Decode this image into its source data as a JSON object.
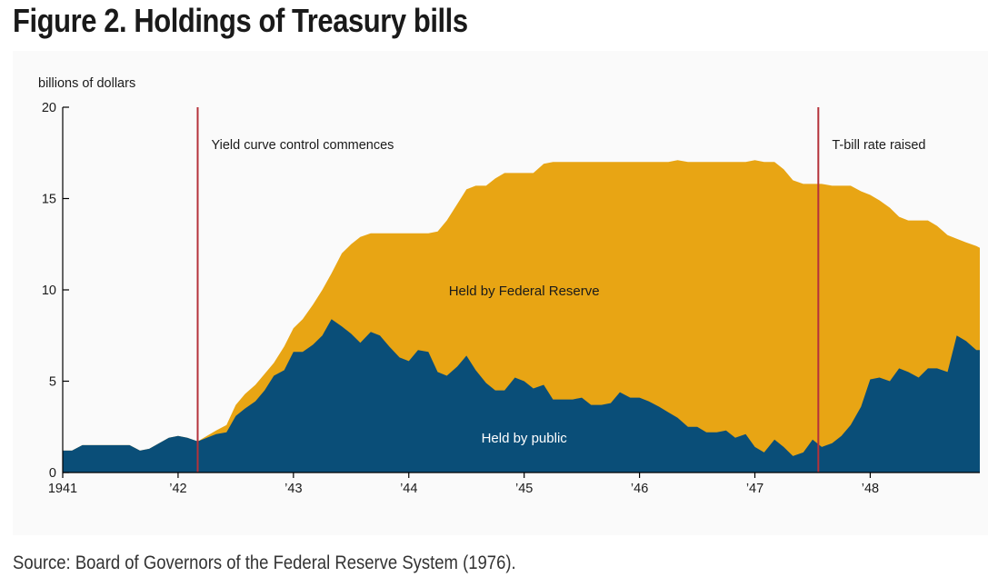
{
  "figure": {
    "title": "Figure 2. Holdings of Treasury bills",
    "source": "Source: Board of Governors of the Federal Reserve System (1976)."
  },
  "colors": {
    "public": "#0a4e78",
    "fed": "#e8a514",
    "event_line": "#b5323a",
    "axis": "#000000",
    "panel": "#fafafa"
  },
  "chart_data": {
    "type": "area",
    "stacked": true,
    "title": "Holdings of Treasury bills",
    "ylabel": "billions of dollars",
    "xlabel": "",
    "xlim": [
      1941.0,
      1948.95
    ],
    "ylim": [
      0,
      20
    ],
    "yticks": [
      0,
      5,
      10,
      15,
      20
    ],
    "xticks": [
      {
        "value": 1941.0,
        "label": "1941"
      },
      {
        "value": 1942.0,
        "label": "’42"
      },
      {
        "value": 1943.0,
        "label": "’43"
      },
      {
        "value": 1944.0,
        "label": "’44"
      },
      {
        "value": 1945.0,
        "label": "’45"
      },
      {
        "value": 1946.0,
        "label": "’46"
      },
      {
        "value": 1947.0,
        "label": "’47"
      },
      {
        "value": 1948.0,
        "label": "’48"
      }
    ],
    "series": [
      {
        "name": "Held by public",
        "points": [
          [
            1941.0,
            1.2
          ],
          [
            1941.08,
            1.2
          ],
          [
            1941.17,
            1.5
          ],
          [
            1941.5,
            1.5
          ],
          [
            1941.58,
            1.5
          ],
          [
            1941.67,
            1.2
          ],
          [
            1941.75,
            1.3
          ],
          [
            1941.92,
            1.9
          ],
          [
            1942.0,
            2.0
          ],
          [
            1942.08,
            1.9
          ],
          [
            1942.17,
            1.7
          ],
          [
            1942.25,
            1.9
          ],
          [
            1942.33,
            2.1
          ],
          [
            1942.42,
            2.2
          ],
          [
            1942.5,
            3.1
          ],
          [
            1942.58,
            3.5
          ],
          [
            1942.67,
            3.9
          ],
          [
            1942.75,
            4.5
          ],
          [
            1942.83,
            5.3
          ],
          [
            1942.92,
            5.6
          ],
          [
            1943.0,
            6.6
          ],
          [
            1943.08,
            6.6
          ],
          [
            1943.17,
            7.0
          ],
          [
            1943.25,
            7.5
          ],
          [
            1943.33,
            8.4
          ],
          [
            1943.42,
            8.0
          ],
          [
            1943.5,
            7.6
          ],
          [
            1943.58,
            7.1
          ],
          [
            1943.67,
            7.7
          ],
          [
            1943.75,
            7.5
          ],
          [
            1943.83,
            6.9
          ],
          [
            1943.92,
            6.3
          ],
          [
            1944.0,
            6.1
          ],
          [
            1944.08,
            6.7
          ],
          [
            1944.17,
            6.6
          ],
          [
            1944.25,
            5.5
          ],
          [
            1944.33,
            5.3
          ],
          [
            1944.42,
            5.8
          ],
          [
            1944.5,
            6.4
          ],
          [
            1944.58,
            5.6
          ],
          [
            1944.67,
            4.9
          ],
          [
            1944.75,
            4.5
          ],
          [
            1944.83,
            4.5
          ],
          [
            1944.92,
            5.2
          ],
          [
            1945.0,
            5.0
          ],
          [
            1945.08,
            4.6
          ],
          [
            1945.17,
            4.8
          ],
          [
            1945.25,
            4.0
          ],
          [
            1945.33,
            4.0
          ],
          [
            1945.42,
            4.0
          ],
          [
            1945.5,
            4.1
          ],
          [
            1945.58,
            3.7
          ],
          [
            1945.67,
            3.7
          ],
          [
            1945.75,
            3.8
          ],
          [
            1945.83,
            4.4
          ],
          [
            1945.92,
            4.1
          ],
          [
            1946.0,
            4.1
          ],
          [
            1946.08,
            3.9
          ],
          [
            1946.17,
            3.6
          ],
          [
            1946.25,
            3.3
          ],
          [
            1946.33,
            3.0
          ],
          [
            1946.42,
            2.5
          ],
          [
            1946.5,
            2.5
          ],
          [
            1946.58,
            2.2
          ],
          [
            1946.67,
            2.2
          ],
          [
            1946.75,
            2.3
          ],
          [
            1946.83,
            1.9
          ],
          [
            1946.92,
            2.1
          ],
          [
            1947.0,
            1.4
          ],
          [
            1947.08,
            1.1
          ],
          [
            1947.17,
            1.8
          ],
          [
            1947.25,
            1.4
          ],
          [
            1947.33,
            0.9
          ],
          [
            1947.42,
            1.1
          ],
          [
            1947.5,
            1.8
          ],
          [
            1947.58,
            1.4
          ],
          [
            1947.67,
            1.6
          ],
          [
            1947.75,
            2.0
          ],
          [
            1947.83,
            2.6
          ],
          [
            1947.92,
            3.6
          ],
          [
            1948.0,
            5.1
          ],
          [
            1948.08,
            5.2
          ],
          [
            1948.17,
            5.0
          ],
          [
            1948.25,
            5.7
          ],
          [
            1948.33,
            5.5
          ],
          [
            1948.42,
            5.2
          ],
          [
            1948.5,
            5.7
          ],
          [
            1948.58,
            5.7
          ],
          [
            1948.67,
            5.5
          ],
          [
            1948.75,
            7.5
          ],
          [
            1948.83,
            7.2
          ],
          [
            1948.92,
            6.7
          ],
          [
            1948.95,
            6.7
          ]
        ]
      },
      {
        "name": "Held by Federal Reserve",
        "total_points": [
          [
            1941.0,
            1.2
          ],
          [
            1941.08,
            1.2
          ],
          [
            1941.17,
            1.5
          ],
          [
            1941.5,
            1.5
          ],
          [
            1941.58,
            1.5
          ],
          [
            1941.67,
            1.2
          ],
          [
            1941.75,
            1.3
          ],
          [
            1941.92,
            1.9
          ],
          [
            1942.0,
            2.0
          ],
          [
            1942.08,
            1.9
          ],
          [
            1942.17,
            1.7
          ],
          [
            1942.25,
            2.0
          ],
          [
            1942.33,
            2.3
          ],
          [
            1942.42,
            2.6
          ],
          [
            1942.5,
            3.7
          ],
          [
            1942.58,
            4.3
          ],
          [
            1942.67,
            4.8
          ],
          [
            1942.75,
            5.4
          ],
          [
            1942.83,
            6.0
          ],
          [
            1942.92,
            6.9
          ],
          [
            1943.0,
            7.9
          ],
          [
            1943.08,
            8.4
          ],
          [
            1943.17,
            9.2
          ],
          [
            1943.25,
            10.0
          ],
          [
            1943.33,
            10.9
          ],
          [
            1943.42,
            12.0
          ],
          [
            1943.5,
            12.5
          ],
          [
            1943.58,
            12.9
          ],
          [
            1943.67,
            13.1
          ],
          [
            1944.17,
            13.1
          ],
          [
            1944.25,
            13.2
          ],
          [
            1944.33,
            13.8
          ],
          [
            1944.42,
            14.7
          ],
          [
            1944.5,
            15.5
          ],
          [
            1944.58,
            15.7
          ],
          [
            1944.67,
            15.7
          ],
          [
            1944.75,
            16.1
          ],
          [
            1944.83,
            16.4
          ],
          [
            1945.08,
            16.4
          ],
          [
            1945.17,
            16.9
          ],
          [
            1945.25,
            17.0
          ],
          [
            1946.25,
            17.0
          ],
          [
            1946.33,
            17.1
          ],
          [
            1946.42,
            17.0
          ],
          [
            1946.92,
            17.0
          ],
          [
            1947.0,
            17.1
          ],
          [
            1947.08,
            17.0
          ],
          [
            1947.17,
            17.0
          ],
          [
            1947.25,
            16.6
          ],
          [
            1947.33,
            16.0
          ],
          [
            1947.42,
            15.8
          ],
          [
            1947.58,
            15.8
          ],
          [
            1947.67,
            15.7
          ],
          [
            1947.83,
            15.7
          ],
          [
            1947.92,
            15.4
          ],
          [
            1948.0,
            15.2
          ],
          [
            1948.08,
            14.9
          ],
          [
            1948.17,
            14.5
          ],
          [
            1948.25,
            14.0
          ],
          [
            1948.33,
            13.8
          ],
          [
            1948.5,
            13.8
          ],
          [
            1948.58,
            13.5
          ],
          [
            1948.67,
            13.0
          ],
          [
            1948.75,
            12.8
          ],
          [
            1948.83,
            12.6
          ],
          [
            1948.92,
            12.4
          ],
          [
            1948.95,
            12.3
          ]
        ]
      }
    ],
    "series_labels": [
      {
        "name": "Held by Federal Reserve",
        "x": 1945.0,
        "y": 9.95
      },
      {
        "name": "Held by public",
        "x": 1945.0,
        "y": 1.9
      }
    ],
    "event_lines": [
      {
        "x": 1942.17,
        "label": "Yield curve control commences"
      },
      {
        "x": 1947.55,
        "label": "T-bill rate raised"
      }
    ]
  }
}
